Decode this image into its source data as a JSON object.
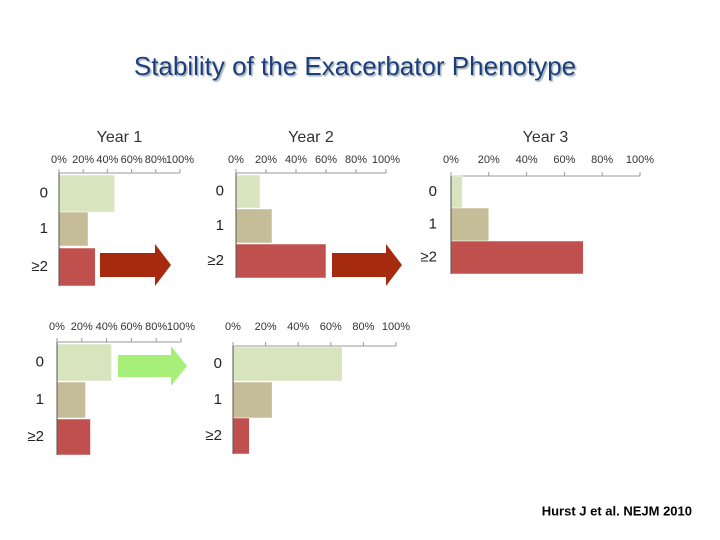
{
  "title": "Stability of the Exacerbator Phenotype",
  "citation": "Hurst J et al. NEJM 2010",
  "chart_data": [
    {
      "type": "hbar",
      "title": "Year 1",
      "categories": [
        "0",
        "1",
        "≥2"
      ],
      "values": [
        46,
        24,
        30
      ],
      "colors": [
        "#d7e4bd",
        "#c4bd97",
        "#c0504d"
      ],
      "xlim": [
        0,
        100
      ],
      "xticks": [
        {
          "value": 0,
          "label": "0%"
        },
        {
          "value": 20,
          "label": "20%"
        },
        {
          "value": 40,
          "label": "40%"
        },
        {
          "value": 60,
          "label": "60%"
        },
        {
          "value": 80,
          "label": "80%"
        },
        {
          "value": 100,
          "label": "100%"
        }
      ]
    },
    {
      "type": "hbar",
      "title": "Year 2",
      "categories": [
        "0",
        "1",
        "≥2"
      ],
      "values": [
        16,
        24,
        60
      ],
      "colors": [
        "#d7e4bd",
        "#c4bd97",
        "#c0504d"
      ],
      "xlim": [
        0,
        100
      ],
      "xticks": [
        {
          "value": 0,
          "label": "0%"
        },
        {
          "value": 20,
          "label": "20%"
        },
        {
          "value": 40,
          "label": "40%"
        },
        {
          "value": 60,
          "label": "60%"
        },
        {
          "value": 80,
          "label": "80%"
        },
        {
          "value": 100,
          "label": "100%"
        }
      ]
    },
    {
      "type": "hbar",
      "title": "Year 3",
      "categories": [
        "0",
        "1",
        "≥2"
      ],
      "values": [
        6,
        20,
        70
      ],
      "colors": [
        "#d7e4bd",
        "#c4bd97",
        "#c0504d"
      ],
      "xlim": [
        0,
        100
      ],
      "xticks": [
        {
          "value": 0,
          "label": "0%"
        },
        {
          "value": 20,
          "label": "20%"
        },
        {
          "value": 40,
          "label": "40%"
        },
        {
          "value": 60,
          "label": "60%"
        },
        {
          "value": 80,
          "label": "80%"
        },
        {
          "value": 100,
          "label": "100%"
        }
      ]
    },
    {
      "type": "hbar",
      "categories": [
        "0",
        "1",
        "≥2"
      ],
      "values": [
        44,
        23,
        27
      ],
      "colors": [
        "#d7e4bd",
        "#c4bd97",
        "#c0504d"
      ],
      "xlim": [
        0,
        100
      ],
      "xticks": [
        {
          "value": 0,
          "label": "0%"
        },
        {
          "value": 20,
          "label": "20%"
        },
        {
          "value": 40,
          "label": "40%"
        },
        {
          "value": 60,
          "label": "60%"
        },
        {
          "value": 80,
          "label": "80%"
        },
        {
          "value": 100,
          "label": "100%"
        }
      ]
    },
    {
      "type": "hbar",
      "categories": [
        "0",
        "1",
        "≥2"
      ],
      "values": [
        67,
        24,
        10
      ],
      "colors": [
        "#d7e4bd",
        "#c4bd97",
        "#c0504d"
      ],
      "xlim": [
        0,
        100
      ],
      "xticks": [
        {
          "value": 0,
          "label": "0%"
        },
        {
          "value": 20,
          "label": "20%"
        },
        {
          "value": 40,
          "label": "40%"
        },
        {
          "value": 60,
          "label": "60%"
        },
        {
          "value": 80,
          "label": "80%"
        },
        {
          "value": 100,
          "label": "100%"
        }
      ]
    }
  ]
}
